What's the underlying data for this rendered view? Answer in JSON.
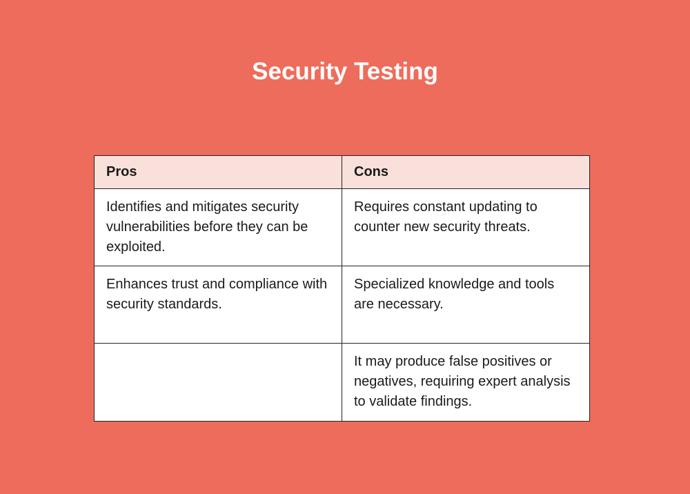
{
  "title": "Security Testing",
  "headers": {
    "pros": "Pros",
    "cons": "Cons"
  },
  "rows": [
    {
      "pros": "Identifies and mitigates security vulnerabilities before they can be exploited.",
      "cons": "Requires constant updating to counter new security threats."
    },
    {
      "pros": "Enhances trust and compliance with security standards.",
      "cons": "Specialized knowledge and tools are necessary."
    },
    {
      "pros": "",
      "cons": "It may produce false positives or negatives, requiring expert analysis to validate findings."
    }
  ],
  "colors": {
    "background": "#ee6c5b",
    "header": "#fae0db"
  }
}
